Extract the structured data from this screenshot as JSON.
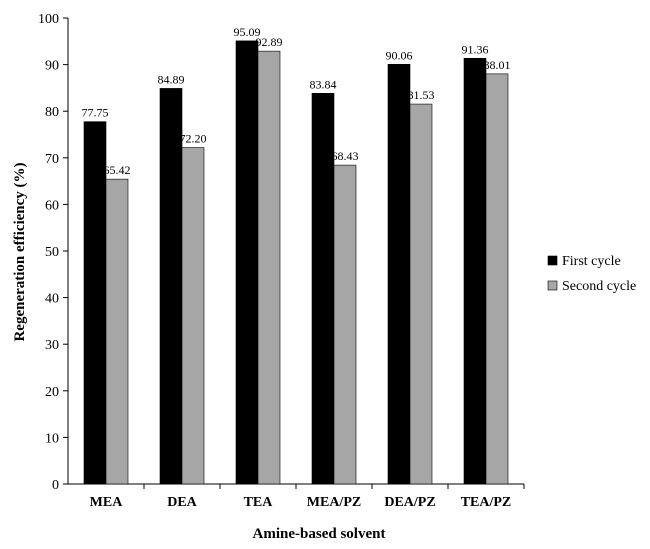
{
  "chart_data": {
    "type": "bar",
    "title": "",
    "xlabel": "Amine-based solvent",
    "ylabel": "Regeneration efficiency  (%)",
    "categories": [
      "MEA",
      "DEA",
      "TEA",
      "MEA/PZ",
      "DEA/PZ",
      "TEA/PZ"
    ],
    "series": [
      {
        "name": "First cycle",
        "color": "#000000",
        "values": [
          77.75,
          84.89,
          95.09,
          83.84,
          90.06,
          91.36
        ],
        "labels": [
          "77.75",
          "84.89",
          "95.09",
          "83.84",
          "90.06",
          "91.36"
        ]
      },
      {
        "name": "Second cycle",
        "color": "#a6a6a6",
        "values": [
          65.42,
          72.2,
          92.89,
          68.43,
          81.53,
          88.01
        ],
        "labels": [
          "65.42",
          "72.20",
          "92.89",
          "68.43",
          "81.53",
          "88.01"
        ]
      }
    ],
    "ylim": [
      0,
      100
    ],
    "yticks": [
      0,
      10,
      20,
      30,
      40,
      50,
      60,
      70,
      80,
      90,
      100
    ],
    "grid": false,
    "legend_position": "right"
  }
}
